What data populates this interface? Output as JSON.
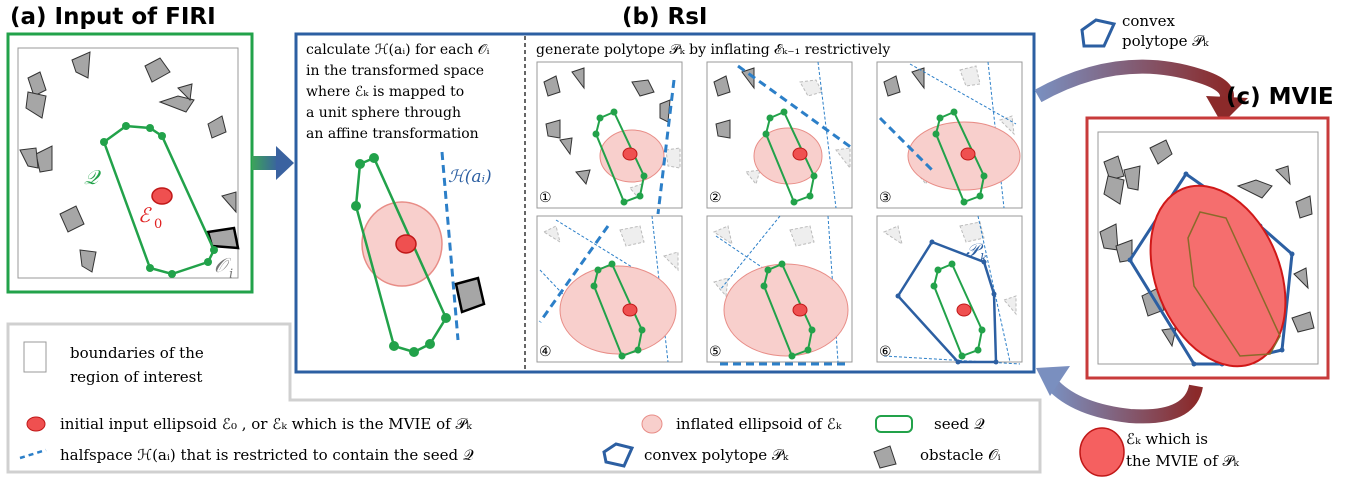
{
  "panels": {
    "a": {
      "title": "(a)  Input of FIRI",
      "label_Q": "𝒬",
      "label_E0": "ℰ",
      "label_E0_sub": "0",
      "label_Oi": "𝒪",
      "label_Oi_sub": "i"
    },
    "b": {
      "title": "(b)  RsI",
      "desc_lines": [
        "calculate ℋ(aᵢ) for each 𝒪ᵢ",
        "in the transformed space",
        "where ℰₖ is mapped to",
        "a unit sphere through",
        "an affine transformation"
      ],
      "halfspace_label": "ℋ(aᵢ)",
      "header": "generate polytope 𝒫ₖ by inflating ℰₖ₋₁ restrictively",
      "steps": [
        "①",
        "②",
        "③",
        "④",
        "⑤",
        "⑥"
      ],
      "pk_label": "𝒫",
      "pk_label_sub": "k"
    },
    "c": {
      "title": "(c)  MVIE"
    }
  },
  "cycle": {
    "top_label_1": "convex",
    "top_label_2": "polytope 𝒫ₖ",
    "bottom_label_1": "ℰₖ which is",
    "bottom_label_2": "the MVIE of 𝒫ₖ"
  },
  "legend": {
    "boundary_1": "boundaries of the",
    "boundary_2": "region of interest",
    "ellipsoid": "initial input ellipsoid ℰ₀ , or ℰₖ which is the MVIE of 𝒫ₖ",
    "inflated": "inflated ellipsoid of ℰₖ",
    "seed": "seed 𝒬",
    "halfspace": "halfspace ℋ(aᵢ) that is restricted to contain the seed 𝒬",
    "polytope": "convex polytope 𝒫ₖ",
    "obstacle": "obstacle 𝒪ᵢ"
  },
  "colors": {
    "green": "#22a24a",
    "blue": "#2c5fa2",
    "red": "#c83b3b",
    "ellipse_fill": "#f4c4c0",
    "obstacle": "#a6a6a6"
  }
}
